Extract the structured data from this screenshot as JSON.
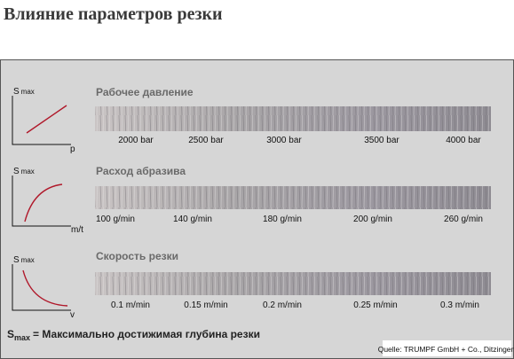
{
  "header": {
    "title": "Влияние параметров резки"
  },
  "rows": [
    {
      "heading": "Рабочее давление",
      "y_symbol": "S",
      "y_subscript": "max",
      "x_axis": "p",
      "labels": [
        "2000 bar",
        "2500 bar",
        "3000 bar",
        "3500 bar",
        "4000 bar"
      ]
    },
    {
      "heading": "Расход абразива",
      "y_symbol": "S",
      "y_subscript": "max",
      "x_axis": "m/t",
      "labels": [
        "100 g/min",
        "140 g/min",
        "180 g/min",
        "200 g/min",
        "260 g/min"
      ]
    },
    {
      "heading": "Скорость резки",
      "y_symbol": "S",
      "y_subscript": "max",
      "x_axis": "v",
      "labels": [
        "0.1 m/min",
        "0.15 m/min",
        "0.2 m/min",
        "0.25 m/min",
        "0.3 m/min"
      ]
    }
  ],
  "footer": {
    "symbol": "S",
    "subscript": "max",
    "text": "= Максимально достижимая глубина резки",
    "source": "Quelle: TRUMPF GmbH + Co., Ditzingen"
  }
}
